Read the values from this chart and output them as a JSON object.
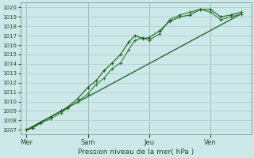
{
  "bg_color": "#cce8e8",
  "grid_color": "#aacccc",
  "line_color_dark": "#1a5c1a",
  "line_color_med": "#2e7d32",
  "ylabel_text": "Pression niveau de la mer( hPa )",
  "ylim": [
    1006.5,
    1020.5
  ],
  "yticks": [
    1007,
    1008,
    1009,
    1010,
    1011,
    1012,
    1013,
    1014,
    1015,
    1016,
    1017,
    1018,
    1019,
    1020
  ],
  "day_labels": [
    "Mer",
    "Sam",
    "Jeu",
    "Ven"
  ],
  "day_positions": [
    0,
    3,
    6,
    9
  ],
  "vline_positions": [
    0,
    3,
    6,
    9
  ],
  "series1_x": [
    0,
    0.3,
    0.7,
    1.2,
    1.7,
    2.0,
    2.5,
    3.0,
    3.4,
    3.8,
    4.2,
    4.6,
    5.0,
    5.3,
    5.7,
    6.0,
    6.5,
    7.0,
    7.5,
    8.0,
    8.5,
    9.0,
    9.5,
    10.0,
    10.5
  ],
  "series1_y": [
    1007.0,
    1007.2,
    1007.7,
    1008.2,
    1008.8,
    1009.3,
    1010.0,
    1010.8,
    1011.8,
    1012.5,
    1013.5,
    1014.1,
    1015.5,
    1016.5,
    1016.8,
    1016.5,
    1017.2,
    1018.7,
    1019.2,
    1019.5,
    1019.8,
    1019.5,
    1018.7,
    1019.0,
    1019.3
  ],
  "series2_x": [
    0,
    0.3,
    0.7,
    1.2,
    1.7,
    2.0,
    2.5,
    3.0,
    3.4,
    3.8,
    4.2,
    4.6,
    5.0,
    5.3,
    5.7,
    6.0,
    6.5,
    7.0,
    7.5,
    8.0,
    8.5,
    9.0,
    9.5,
    10.0,
    10.5
  ],
  "series2_y": [
    1007.0,
    1007.2,
    1007.8,
    1008.4,
    1009.0,
    1009.4,
    1010.3,
    1011.5,
    1012.2,
    1013.3,
    1014.1,
    1015.0,
    1016.3,
    1017.0,
    1016.7,
    1016.8,
    1017.5,
    1018.5,
    1019.0,
    1019.2,
    1019.8,
    1019.8,
    1019.0,
    1019.2,
    1019.5
  ],
  "series3_x": [
    0,
    10.5
  ],
  "series3_y": [
    1007.0,
    1019.3
  ],
  "xlim": [
    -0.3,
    11.0
  ]
}
